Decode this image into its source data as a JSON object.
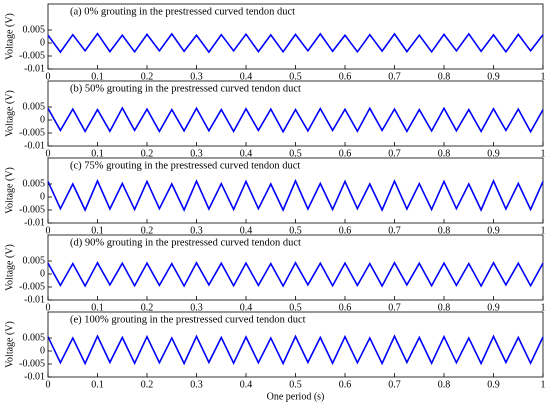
{
  "chart_data": [
    {
      "type": "line",
      "title": "(a) 0% grouting in the prestressed curved tendon duct",
      "ylabel": "Voltage (V)",
      "color": "#0000ff",
      "x": [
        0,
        0.025,
        0.05,
        0.075,
        0.1,
        0.125,
        0.15,
        0.175,
        0.2,
        0.225,
        0.25,
        0.275,
        0.3,
        0.325,
        0.35,
        0.375,
        0.4,
        0.425,
        0.45,
        0.475,
        0.5,
        0.525,
        0.55,
        0.575,
        0.6,
        0.625,
        0.65,
        0.675,
        0.7,
        0.725,
        0.75,
        0.775,
        0.8,
        0.825,
        0.85,
        0.875,
        0.9,
        0.925,
        0.95,
        0.975,
        1
      ],
      "values": [
        0.003,
        -0.0035,
        0.0032,
        -0.003,
        0.0036,
        -0.0033,
        0.003,
        -0.0034,
        0.0033,
        -0.003,
        0.0035,
        -0.0032,
        0.003,
        -0.0035,
        0.0032,
        -0.003,
        0.0034,
        -0.0033,
        0.0031,
        -0.0034,
        0.0033,
        -0.003,
        0.0035,
        -0.0032,
        0.003,
        -0.0034,
        0.0032,
        -0.0031,
        0.0035,
        -0.0033,
        0.003,
        -0.0034,
        0.0033,
        -0.003,
        0.0035,
        -0.0032,
        0.0031,
        -0.0034,
        0.0033,
        -0.003,
        0.0032
      ],
      "xlim": [
        0,
        1
      ],
      "ylim": [
        -0.01,
        0.015
      ],
      "xticks": [
        0,
        0.1,
        0.2,
        0.3,
        0.4,
        0.5,
        0.6,
        0.7,
        0.8,
        0.9,
        1
      ],
      "yticks": [
        -0.01,
        -0.005,
        0,
        0.005
      ]
    },
    {
      "type": "line",
      "title": "(b) 50% grouting in the prestressed curved tendon duct",
      "ylabel": "Voltage (V)",
      "color": "#0000ff",
      "x": [
        0,
        0.025,
        0.05,
        0.075,
        0.1,
        0.125,
        0.15,
        0.175,
        0.2,
        0.225,
        0.25,
        0.275,
        0.3,
        0.325,
        0.35,
        0.375,
        0.4,
        0.425,
        0.45,
        0.475,
        0.5,
        0.525,
        0.55,
        0.575,
        0.6,
        0.625,
        0.65,
        0.675,
        0.7,
        0.725,
        0.75,
        0.775,
        0.8,
        0.825,
        0.85,
        0.875,
        0.9,
        0.925,
        0.95,
        0.975,
        1
      ],
      "values": [
        0.0045,
        -0.004,
        0.0042,
        -0.0044,
        0.004,
        -0.0043,
        0.0046,
        -0.004,
        0.0042,
        -0.0044,
        0.004,
        -0.0042,
        0.0045,
        -0.0041,
        0.004,
        -0.0044,
        0.0043,
        -0.004,
        0.0042,
        -0.0045,
        0.004,
        -0.0042,
        0.0044,
        -0.004,
        0.0041,
        -0.0043,
        0.0045,
        -0.004,
        0.0042,
        -0.0044,
        0.004,
        -0.0042,
        0.0045,
        -0.0041,
        0.004,
        -0.0044,
        0.0043,
        -0.004,
        0.0042,
        -0.0045,
        0.004
      ],
      "xlim": [
        0,
        1
      ],
      "ylim": [
        -0.01,
        0.015
      ],
      "xticks": [
        0,
        0.1,
        0.2,
        0.3,
        0.4,
        0.5,
        0.6,
        0.7,
        0.8,
        0.9,
        1
      ],
      "yticks": [
        -0.01,
        -0.005,
        0,
        0.005
      ]
    },
    {
      "type": "line",
      "title": "(c) 75% grouting in the prestressed curved tendon duct",
      "ylabel": "Voltage (V)",
      "color": "#0000ff",
      "x": [
        0,
        0.025,
        0.05,
        0.075,
        0.1,
        0.125,
        0.15,
        0.175,
        0.2,
        0.225,
        0.25,
        0.275,
        0.3,
        0.325,
        0.35,
        0.375,
        0.4,
        0.425,
        0.45,
        0.475,
        0.5,
        0.525,
        0.55,
        0.575,
        0.6,
        0.625,
        0.65,
        0.675,
        0.7,
        0.725,
        0.75,
        0.775,
        0.8,
        0.825,
        0.85,
        0.875,
        0.9,
        0.925,
        0.95,
        0.975,
        1
      ],
      "values": [
        0.006,
        -0.0045,
        0.005,
        -0.005,
        0.0062,
        -0.0046,
        0.0052,
        -0.0048,
        0.006,
        -0.0045,
        0.005,
        -0.005,
        0.0061,
        -0.0046,
        0.0051,
        -0.0048,
        0.006,
        -0.0045,
        0.005,
        -0.005,
        0.0062,
        -0.0046,
        0.0052,
        -0.0048,
        0.006,
        -0.0045,
        0.005,
        -0.005,
        0.0061,
        -0.0046,
        0.0051,
        -0.0048,
        0.006,
        -0.0045,
        0.005,
        -0.005,
        0.0062,
        -0.0046,
        0.0052,
        -0.0048,
        0.006
      ],
      "xlim": [
        0,
        1
      ],
      "ylim": [
        -0.01,
        0.015
      ],
      "xticks": [
        0,
        0.1,
        0.2,
        0.3,
        0.4,
        0.5,
        0.6,
        0.7,
        0.8,
        0.9,
        1
      ],
      "yticks": [
        -0.01,
        -0.005,
        0,
        0.005
      ]
    },
    {
      "type": "line",
      "title": "(d) 90% grouting in the prestressed curved tendon duct",
      "ylabel": "Voltage (V)",
      "color": "#0000ff",
      "x": [
        0,
        0.025,
        0.05,
        0.075,
        0.1,
        0.125,
        0.15,
        0.175,
        0.2,
        0.225,
        0.25,
        0.275,
        0.3,
        0.325,
        0.35,
        0.375,
        0.4,
        0.425,
        0.45,
        0.475,
        0.5,
        0.525,
        0.55,
        0.575,
        0.6,
        0.625,
        0.65,
        0.675,
        0.7,
        0.725,
        0.75,
        0.775,
        0.8,
        0.825,
        0.85,
        0.875,
        0.9,
        0.925,
        0.95,
        0.975,
        1
      ],
      "values": [
        0.0042,
        -0.0044,
        0.004,
        -0.0046,
        0.0043,
        -0.0042,
        0.0041,
        -0.0045,
        0.0042,
        -0.0044,
        0.004,
        -0.0046,
        0.0043,
        -0.0042,
        0.0041,
        -0.0045,
        0.0042,
        -0.0044,
        0.004,
        -0.0046,
        0.0043,
        -0.0042,
        0.0041,
        -0.0045,
        0.0042,
        -0.0044,
        0.004,
        -0.0046,
        0.0043,
        -0.0042,
        0.0041,
        -0.0045,
        0.0042,
        -0.0044,
        0.004,
        -0.0046,
        0.0043,
        -0.0042,
        0.0041,
        -0.0045,
        0.0042
      ],
      "xlim": [
        0,
        1
      ],
      "ylim": [
        -0.01,
        0.015
      ],
      "xticks": [
        0,
        0.1,
        0.2,
        0.3,
        0.4,
        0.5,
        0.6,
        0.7,
        0.8,
        0.9,
        1
      ],
      "yticks": [
        -0.01,
        -0.005,
        0,
        0.005
      ]
    },
    {
      "type": "line",
      "title": "(e) 100% grouting in the prestressed curved tendon duct",
      "ylabel": "Voltage (V)",
      "xlabel": "One period (s)",
      "color": "#0000ff",
      "x": [
        0,
        0.025,
        0.05,
        0.075,
        0.1,
        0.125,
        0.15,
        0.175,
        0.2,
        0.225,
        0.25,
        0.275,
        0.3,
        0.325,
        0.35,
        0.375,
        0.4,
        0.425,
        0.45,
        0.475,
        0.5,
        0.525,
        0.55,
        0.575,
        0.6,
        0.625,
        0.65,
        0.675,
        0.7,
        0.725,
        0.75,
        0.775,
        0.8,
        0.825,
        0.85,
        0.875,
        0.9,
        0.925,
        0.95,
        0.975,
        1
      ],
      "values": [
        0.0055,
        -0.0045,
        0.005,
        -0.0048,
        0.0057,
        -0.0044,
        0.0052,
        -0.0047,
        0.0055,
        -0.0045,
        0.005,
        -0.0048,
        0.0056,
        -0.0044,
        0.0052,
        -0.0047,
        0.0054,
        -0.0045,
        0.005,
        -0.0048,
        0.0056,
        -0.0044,
        0.0052,
        -0.0047,
        0.0055,
        -0.0045,
        0.005,
        -0.0048,
        0.0057,
        -0.0044,
        0.0052,
        -0.0047,
        0.0055,
        -0.0045,
        0.005,
        -0.0048,
        0.0056,
        -0.0044,
        0.0052,
        -0.0047,
        0.0054
      ],
      "xlim": [
        0,
        1
      ],
      "ylim": [
        -0.01,
        0.015
      ],
      "xticks": [
        0,
        0.1,
        0.2,
        0.3,
        0.4,
        0.5,
        0.6,
        0.7,
        0.8,
        0.9,
        1
      ],
      "yticks": [
        -0.01,
        -0.005,
        0,
        0.005
      ]
    }
  ]
}
